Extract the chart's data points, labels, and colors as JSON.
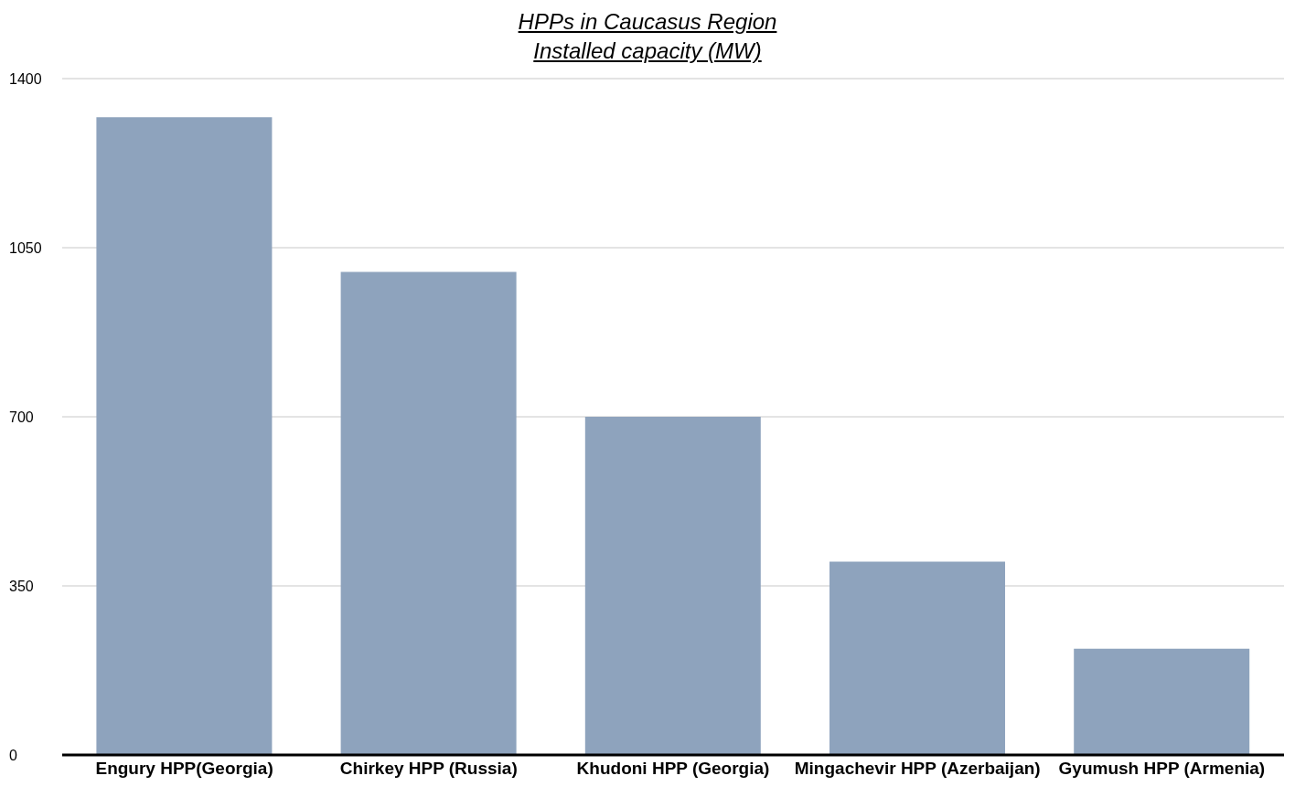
{
  "chart_data": {
    "type": "bar",
    "title": "HPPs in Caucasus Region\nInstalled capacity (MW)",
    "categories": [
      "Engury HPP(Georgia)",
      "Chirkey HPP (Russia)",
      "Khudoni HPP (Georgia)",
      "Mingachevir HPP (Azerbaijan)",
      "Gyumush HPP (Armenia)"
    ],
    "values": [
      1320,
      1000,
      700,
      400,
      220
    ],
    "color": "#8ea3bd",
    "ylim": [
      0,
      1400
    ],
    "yticks": [
      0,
      350,
      700,
      1050,
      1400
    ],
    "grid": "y"
  }
}
